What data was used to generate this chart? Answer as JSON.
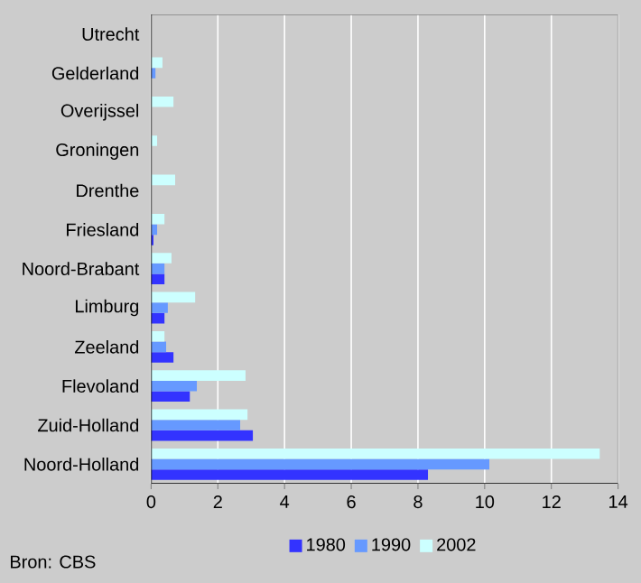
{
  "chart_data": {
    "type": "bar",
    "orientation": "horizontal",
    "categories": [
      "Utrecht",
      "Gelderland",
      "Overijssel",
      "Groningen",
      "Drenthe",
      "Friesland",
      "Noord-Brabant",
      "Limburg",
      "Zeeland",
      "Flevoland",
      "Zuid-Holland",
      "Noord-Holland"
    ],
    "series": [
      {
        "name": "1980",
        "color": "#3333ff",
        "values": [
          0,
          0,
          0,
          0,
          0,
          0.07,
          0.4,
          0.4,
          0.67,
          1.16,
          3.05,
          8.3
        ]
      },
      {
        "name": "1990",
        "color": "#6699ff",
        "values": [
          0,
          0.13,
          0,
          0,
          0,
          0.18,
          0.4,
          0.5,
          0.45,
          1.37,
          2.67,
          10.14
        ]
      },
      {
        "name": "2002",
        "color": "#ccffff",
        "values": [
          0,
          0.34,
          0.67,
          0.18,
          0.72,
          0.4,
          0.61,
          1.32,
          0.4,
          2.83,
          2.89,
          13.45
        ]
      }
    ],
    "xlim": [
      0,
      14
    ],
    "xticks": [
      0,
      2,
      4,
      6,
      8,
      10,
      12,
      14
    ],
    "grid": "x",
    "legend": "bottom",
    "annotations": [
      "Bron: CBS"
    ]
  }
}
